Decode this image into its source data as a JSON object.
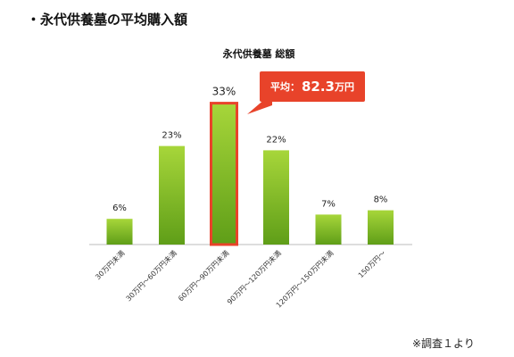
{
  "page": {
    "heading": "・永代供養墓の平均購入額",
    "footnote": "※調査１より"
  },
  "callout": {
    "prefix": "平均：",
    "value": "82.3",
    "unit": "万円"
  },
  "colors": {
    "bar_top": "#a7d63a",
    "bar_bottom": "#5f9e18",
    "highlight_border": "#e8432a",
    "axis": "#bbbbbb"
  },
  "chart_data": {
    "type": "bar",
    "title": "永代供養墓 総額",
    "categories": [
      "30万円未満",
      "30万円〜60万円未満",
      "60万円〜90万円未満",
      "90万円〜120万円未満",
      "120万円〜150万円未満",
      "150万円〜"
    ],
    "values": [
      6,
      23,
      33,
      22,
      7,
      8
    ],
    "value_labels": [
      "6%",
      "23%",
      "33%",
      "22%",
      "7%",
      "8%"
    ],
    "unit": "%",
    "highlight_index": 2,
    "ylim": [
      0,
      35
    ],
    "grid": false
  }
}
